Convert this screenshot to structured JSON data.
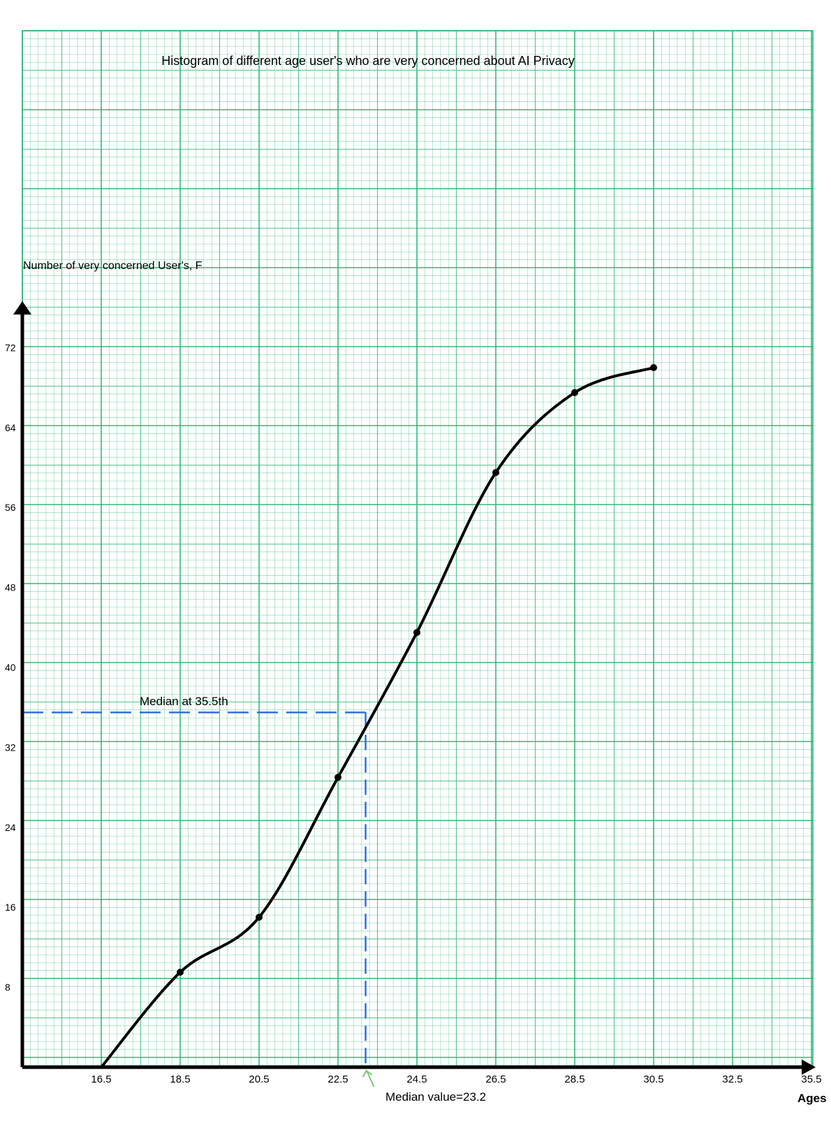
{
  "chart_data": {
    "type": "line",
    "title": "Histogram of different age user's who are very concerned about AI Privacy",
    "ylabel": "Number of very concerned User's, F",
    "xlabel": "Ages",
    "x_ticks": [
      "16.5",
      "18.5",
      "20.5",
      "22.5",
      "24.5",
      "26.5",
      "28.5",
      "30.5",
      "32.5",
      "35.5"
    ],
    "y_ticks": [
      "8",
      "16",
      "24",
      "32",
      "40",
      "48",
      "56",
      "64",
      "72"
    ],
    "xlim": [
      14.5,
      34.5
    ],
    "ylim": [
      0,
      78
    ],
    "grid": true,
    "series": [
      {
        "x": [
          16.5,
          18.5,
          20.5,
          22.5,
          24.5,
          26.5,
          28.5,
          30.5
        ],
        "y": [
          0,
          9.5,
          15,
          29,
          43.5,
          59.5,
          67.5,
          70
        ]
      }
    ],
    "annotations": {
      "median_label": "Median at 35.5th",
      "median_y": 35.5,
      "median_value_label": "Median value=23.2",
      "median_x": 23.2
    },
    "colors": {
      "grid": "#2bb673",
      "curve": "#000000",
      "median_line": "#2f6fdc",
      "arrow": "#7cc47a"
    }
  }
}
